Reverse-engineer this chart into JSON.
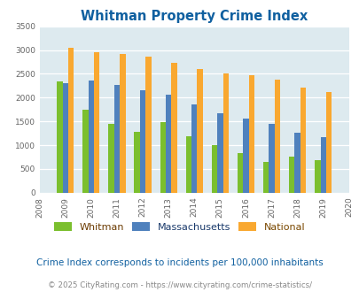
{
  "title": "Whitman Property Crime Index",
  "years": [
    2009,
    2010,
    2011,
    2012,
    2013,
    2014,
    2015,
    2016,
    2017,
    2018,
    2019
  ],
  "whitman": [
    2350,
    1750,
    1450,
    1280,
    1490,
    1190,
    1000,
    830,
    650,
    760,
    680
  ],
  "massachusetts": [
    2300,
    2360,
    2260,
    2160,
    2060,
    1860,
    1680,
    1560,
    1450,
    1260,
    1160
  ],
  "national": [
    3040,
    2960,
    2910,
    2860,
    2730,
    2600,
    2500,
    2470,
    2380,
    2210,
    2110
  ],
  "xlim": [
    2008,
    2020
  ],
  "ylim": [
    0,
    3500
  ],
  "yticks": [
    0,
    500,
    1000,
    1500,
    2000,
    2500,
    3000,
    3500
  ],
  "xticks": [
    2008,
    2009,
    2010,
    2011,
    2012,
    2013,
    2014,
    2015,
    2016,
    2017,
    2018,
    2019,
    2020
  ],
  "color_whitman": "#7bbf2e",
  "color_massachusetts": "#4f81bd",
  "color_national": "#f9a830",
  "bg_color": "#ddeaef",
  "title_color": "#1060a0",
  "legend_whitman_color": "#7b3f00",
  "legend_mass_color": "#1f4e79",
  "legend_national_color": "#7f4f00",
  "subtitle": "Crime Index corresponds to incidents per 100,000 inhabitants",
  "footer": "© 2025 CityRating.com - https://www.cityrating.com/crime-statistics/",
  "subtitle_color": "#1060a0",
  "footer_color": "#888888",
  "bar_width": 0.22
}
